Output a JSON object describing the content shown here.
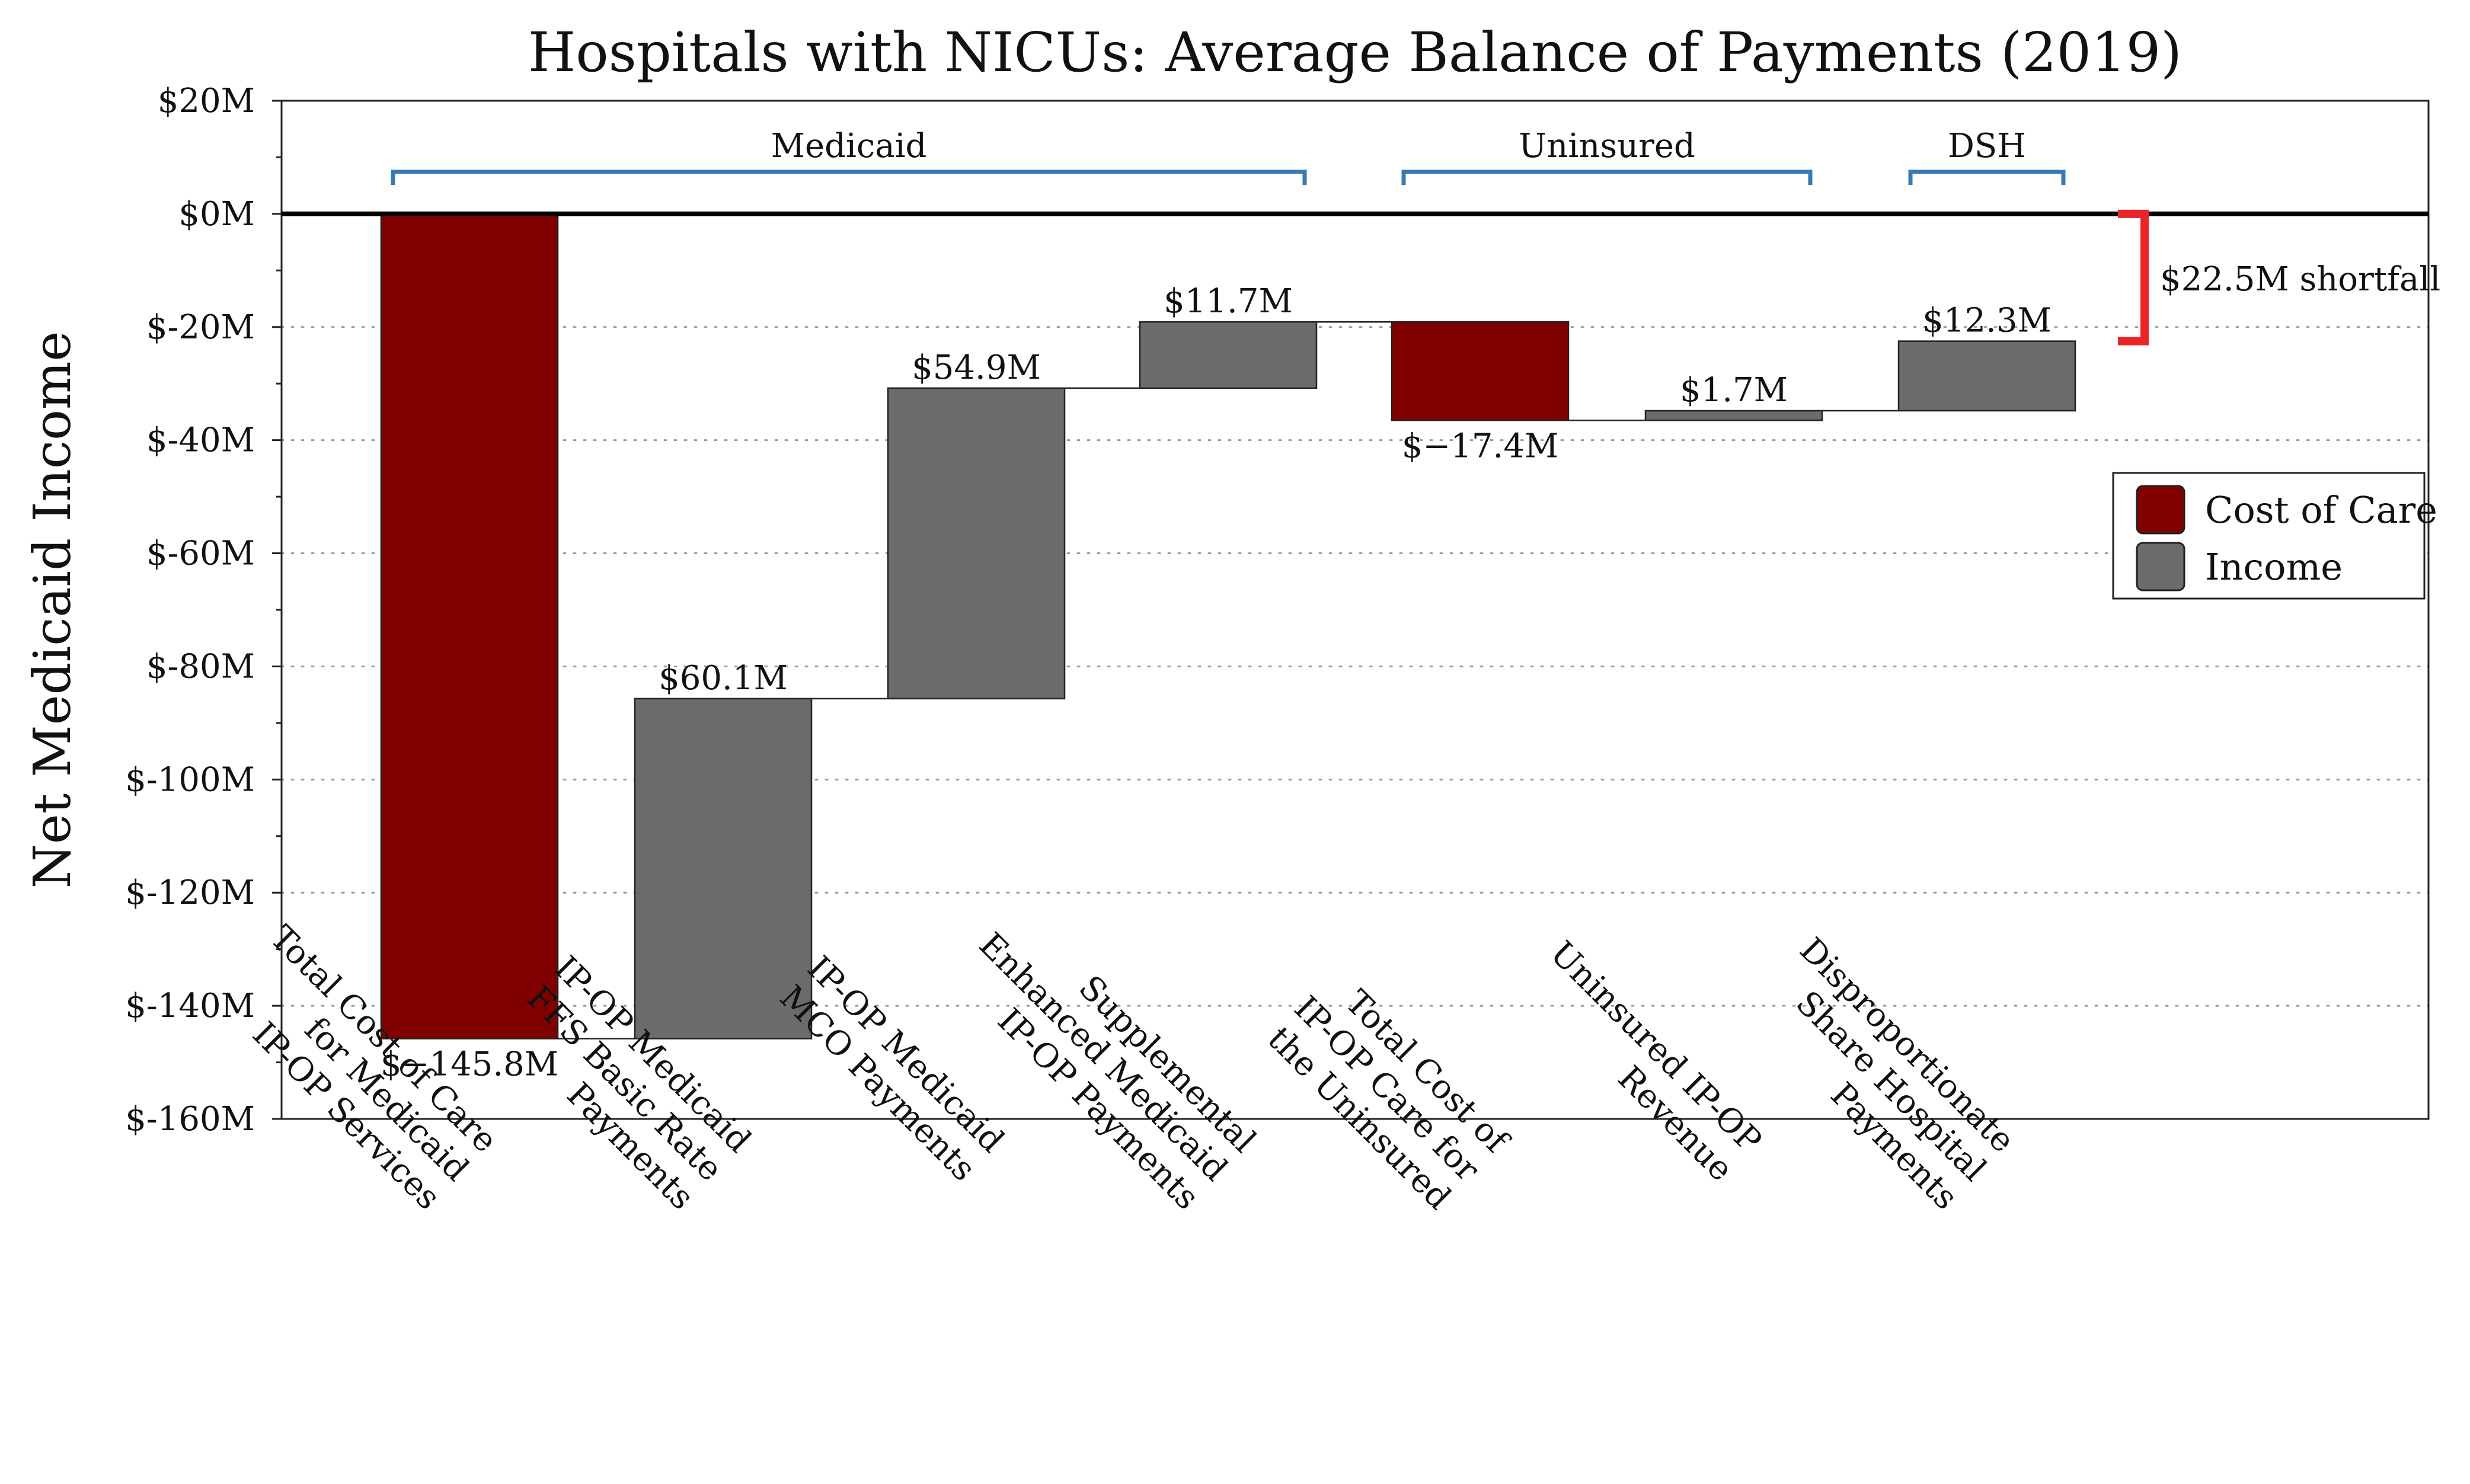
{
  "chart_data": {
    "type": "waterfall",
    "title": "Hospitals with NICUs: Average Balance of Payments (2019)",
    "ylabel": "Net Medicaid Income",
    "ylim": [
      -160,
      20
    ],
    "yticks": [
      {
        "value": 20,
        "label": "$20M"
      },
      {
        "value": 0,
        "label": "$0M"
      },
      {
        "value": -20,
        "label": "$-20M"
      },
      {
        "value": -40,
        "label": "$-40M"
      },
      {
        "value": -60,
        "label": "$-60M"
      },
      {
        "value": -80,
        "label": "$-80M"
      },
      {
        "value": -100,
        "label": "$-100M"
      },
      {
        "value": -120,
        "label": "$-120M"
      },
      {
        "value": -140,
        "label": "$-140M"
      },
      {
        "value": -160,
        "label": "$-160M"
      }
    ],
    "grid": "horizontal-dotted",
    "legend_position": "right",
    "legend": [
      {
        "label": "Cost of Care",
        "color": "#800000"
      },
      {
        "label": "Income",
        "color": "#6b6b6b"
      }
    ],
    "bars": [
      {
        "category": [
          "Total Cost of Care",
          "for Medicaid",
          "IP-OP Services"
        ],
        "start": 0,
        "end": -145.8,
        "kind": "cost",
        "label": "$−145.8M"
      },
      {
        "category": [
          "IP-OP Medicaid",
          "FFS Basic Rate",
          "Payments"
        ],
        "start": -145.8,
        "end": -85.7,
        "kind": "income",
        "label": "$60.1M"
      },
      {
        "category": [
          "IP-OP Medicaid",
          "MCO Payments"
        ],
        "start": -85.7,
        "end": -30.8,
        "kind": "income",
        "label": "$54.9M"
      },
      {
        "category": [
          "Supplemental",
          "Enhanced Medicaid",
          "IP-OP Payments"
        ],
        "start": -30.8,
        "end": -19.1,
        "kind": "income",
        "label": "$11.7M"
      },
      {
        "category": [
          "Total Cost of",
          "IP-OP Care for",
          "the Uninsured"
        ],
        "start": -19.1,
        "end": -36.5,
        "kind": "cost",
        "label": "$−17.4M"
      },
      {
        "category": [
          "Uninsured IP-OP",
          "Revenue"
        ],
        "start": -36.5,
        "end": -34.8,
        "kind": "income",
        "label": "$1.7M"
      },
      {
        "category": [
          "Disproportionate",
          "Share Hospital",
          "Payments"
        ],
        "start": -34.8,
        "end": -22.5,
        "kind": "income",
        "label": "$12.3M"
      }
    ],
    "groups": [
      {
        "label": "Medicaid",
        "from": 0,
        "to": 3
      },
      {
        "label": "Uninsured",
        "from": 4,
        "to": 5
      },
      {
        "label": "DSH",
        "from": 6,
        "to": 6
      }
    ],
    "annotation": {
      "label": "$22.5M shortfall",
      "from": 0,
      "to": -22.5,
      "color": "#e8262a"
    }
  }
}
